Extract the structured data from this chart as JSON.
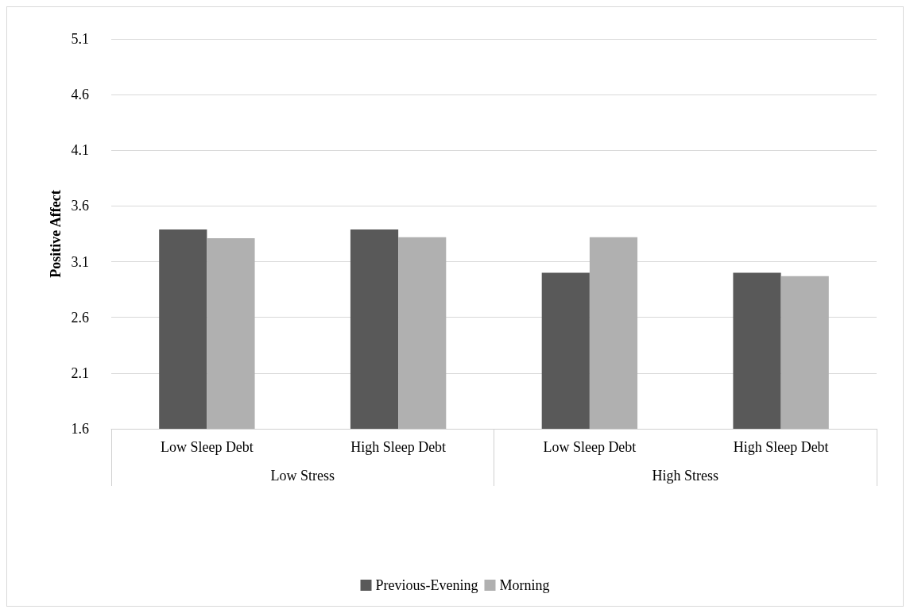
{
  "chart_data": {
    "type": "bar",
    "ylabel": "Positive Affect",
    "categories": [
      "Low Sleep Debt",
      "High Sleep Debt",
      "Low Sleep Debt",
      "High Sleep Debt"
    ],
    "annotations": [
      "Low Stress",
      "High Stress"
    ],
    "series": [
      {
        "name": "Previous-Evening",
        "color": "#595959",
        "values": [
          3.39,
          3.39,
          3.0,
          3.0
        ]
      },
      {
        "name": "Morning",
        "color": "#b0b0b0",
        "values": [
          3.31,
          3.32,
          3.32,
          2.97
        ]
      }
    ],
    "ylim": [
      1.6,
      5.1
    ],
    "yticks": [
      1.6,
      2.1,
      2.6,
      3.1,
      3.6,
      4.1,
      4.6,
      5.1
    ],
    "grid": "y",
    "legend": "bottom"
  }
}
